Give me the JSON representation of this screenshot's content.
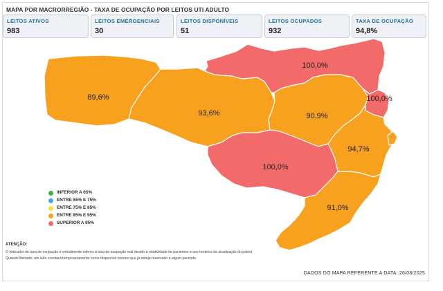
{
  "title": "MAPA POR MACRORREGIÃO - TAXA DE OCUPAÇÃO POR LEITOS UTI ADULTO",
  "kpis": [
    {
      "label": "LEITOS ATIVOS",
      "value": "983"
    },
    {
      "label": "LEITOS EMERGENCIAIS",
      "value": "30"
    },
    {
      "label": "LEITOS DISPONÍVEIS",
      "value": "51"
    },
    {
      "label": "LEITOS OCUPADOS",
      "value": "932"
    },
    {
      "label": "TAXA DE OCUPAÇÃO",
      "value": "94,8%"
    }
  ],
  "colors": {
    "green": "#3cb24a",
    "blue": "#4aa8e0",
    "yellow": "#f6e62a",
    "orange": "#f7a11e",
    "red": "#f26a6a",
    "border": "#ffffff"
  },
  "regions": [
    {
      "name": "extremo-oeste",
      "label": "89,6%",
      "color": "orange"
    },
    {
      "name": "meio-oeste",
      "label": "93,6%",
      "color": "orange"
    },
    {
      "name": "planalto-norte-nordeste",
      "label": "100,0%",
      "color": "red"
    },
    {
      "name": "vale-itajai",
      "label": "90,9%",
      "color": "orange"
    },
    {
      "name": "grande-florianopolis-norte",
      "label": "100,0%",
      "color": "red"
    },
    {
      "name": "grande-florianopolis",
      "label": "94,7%",
      "color": "orange"
    },
    {
      "name": "serra-catarinense",
      "label": "100,0%",
      "color": "red"
    },
    {
      "name": "sul",
      "label": "91,0%",
      "color": "orange"
    }
  ],
  "legend": [
    {
      "label": "INFERIOR A 65%",
      "color": "green"
    },
    {
      "label": "ENTRE 65% E 75%",
      "color": "blue"
    },
    {
      "label": "ENTRE 75% E 85%",
      "color": "yellow"
    },
    {
      "label": "ENTRE 85% E 95%",
      "color": "orange"
    },
    {
      "label": "SUPERIOR A 95%",
      "color": "red"
    }
  ],
  "notes": {
    "title": "ATENÇÃO:",
    "line1": "O indicador de taxa de ocupação é virtualmente inferior à taxa de ocupação real devido à rotatividade de pacientes e aos horários de atualização do painel.",
    "line2": "Quando liberado, um leito constará temporariamente como disponível mesmo que já esteja reservado a algum paciente."
  },
  "footer": {
    "date_line": "DADOS DO MAPA REFERENTE A DATA: 26/08/2025"
  }
}
